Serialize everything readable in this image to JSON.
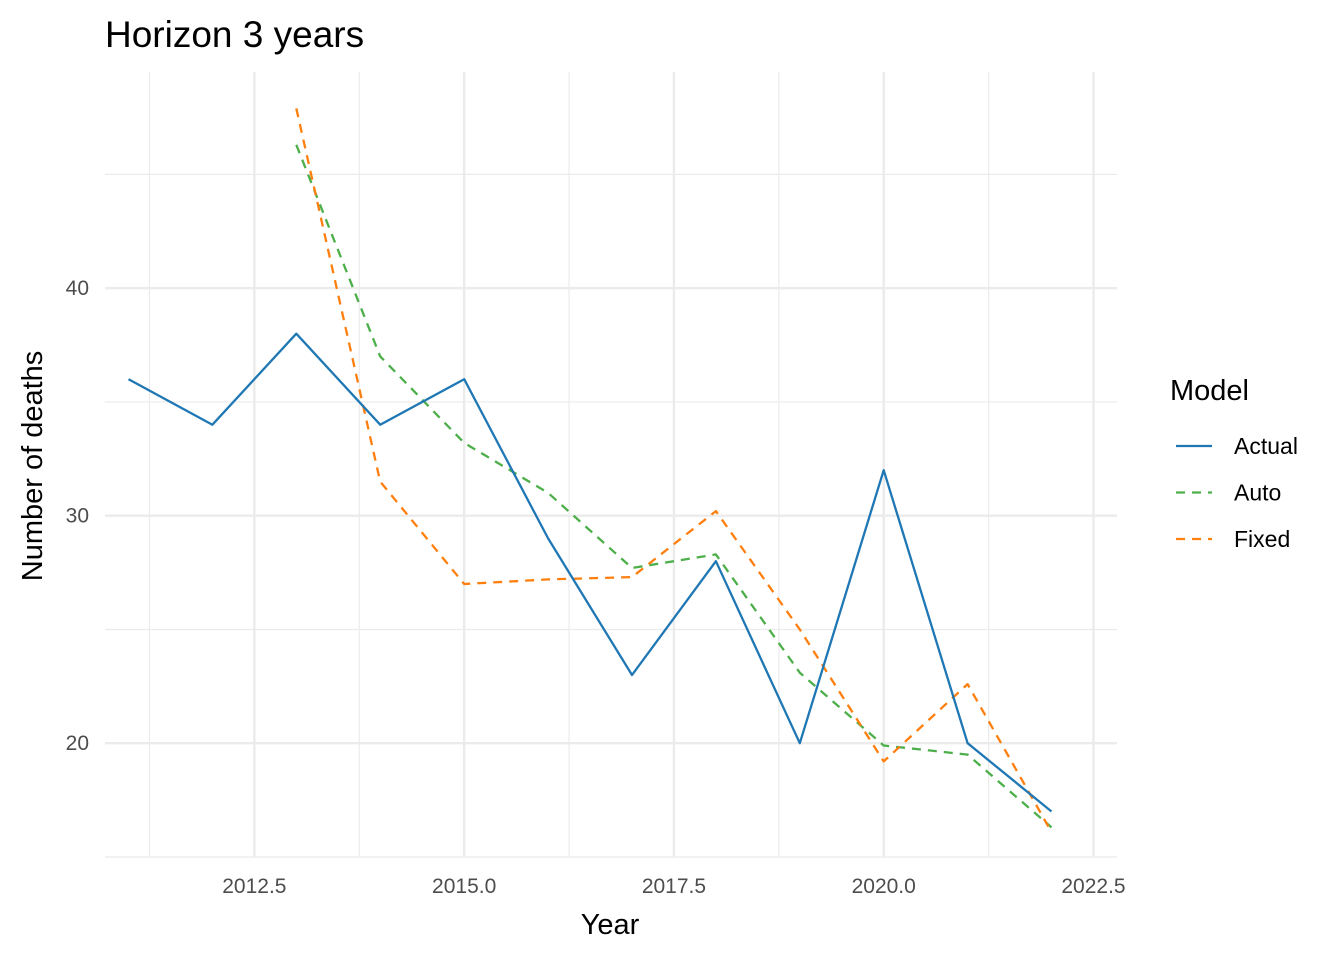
{
  "chart_data": {
    "type": "line",
    "title": "Horizon 3 years",
    "xlabel": "Year",
    "ylabel": "Number of deaths",
    "xlim": [
      2010.72,
      2022.78
    ],
    "ylim": [
      15.0,
      49.5
    ],
    "x_ticks": [
      2012.5,
      2015.0,
      2017.5,
      2020.0,
      2022.5
    ],
    "x_tick_labels": [
      "2012.5",
      "2015.0",
      "2017.5",
      "2020.0",
      "2022.5"
    ],
    "y_ticks": [
      20,
      30,
      40
    ],
    "y_tick_labels": [
      "20",
      "30",
      "40"
    ],
    "grid": true,
    "legend": {
      "title": "Model",
      "position": "right"
    },
    "series": [
      {
        "name": "Actual",
        "color": "#1f77b4",
        "dash": "solid",
        "x": [
          2011,
          2012,
          2013,
          2014,
          2015,
          2016,
          2017,
          2018,
          2019,
          2020,
          2021,
          2022
        ],
        "y": [
          36,
          34,
          38,
          34,
          36,
          29,
          23,
          28,
          20,
          32,
          20,
          17
        ]
      },
      {
        "name": "Auto",
        "color": "#4daf4a",
        "dash": "dashed",
        "x": [
          2013,
          2014,
          2015,
          2016,
          2017,
          2018,
          2019,
          2020,
          2021,
          2022
        ],
        "y": [
          46.3,
          37.0,
          33.2,
          31.0,
          27.7,
          28.3,
          23.1,
          19.9,
          19.5,
          16.3
        ]
      },
      {
        "name": "Fixed",
        "color": "#ff7f0e",
        "dash": "dashed",
        "x": [
          2013,
          2014,
          2015,
          2016,
          2017,
          2018,
          2019,
          2020,
          2021,
          2022
        ],
        "y": [
          47.9,
          31.5,
          27.0,
          27.2,
          27.3,
          30.2,
          25.0,
          19.2,
          22.6,
          16.1
        ]
      }
    ]
  }
}
